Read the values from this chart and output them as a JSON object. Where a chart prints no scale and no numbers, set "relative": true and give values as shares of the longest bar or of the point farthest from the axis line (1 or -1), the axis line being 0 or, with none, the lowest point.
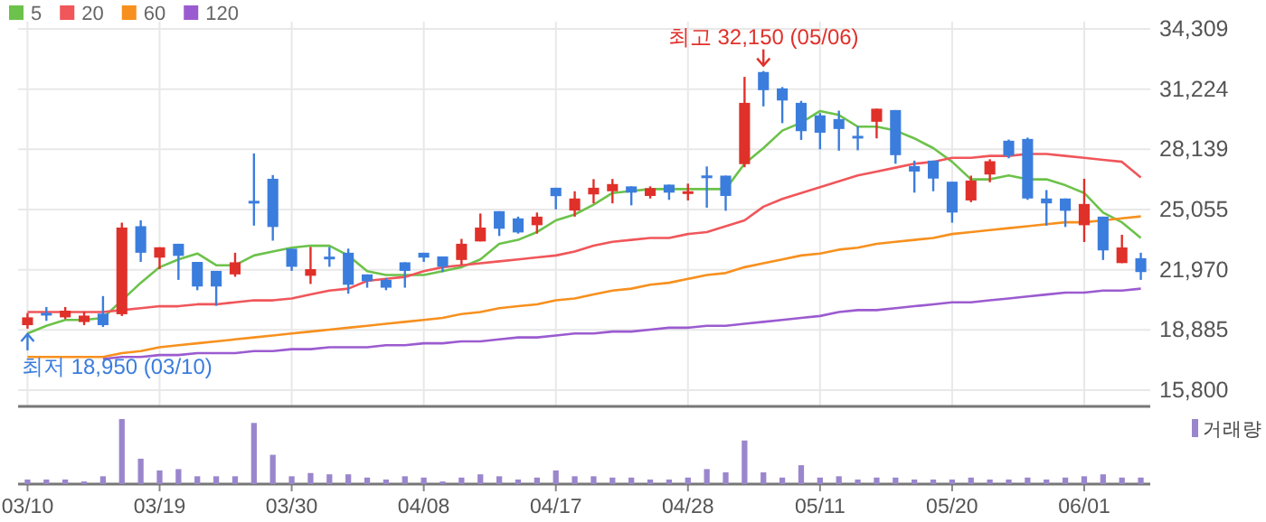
{
  "chart_data": [
    {
      "type": "candlestick",
      "categories": [
        "03/10",
        null,
        null,
        null,
        null,
        null,
        null,
        "03/19",
        null,
        null,
        null,
        null,
        null,
        null,
        "03/30",
        null,
        null,
        null,
        null,
        null,
        null,
        "04/08",
        null,
        null,
        null,
        null,
        null,
        null,
        "04/17",
        null,
        null,
        null,
        null,
        null,
        null,
        "04/28",
        null,
        null,
        null,
        null,
        null,
        null,
        "05/11",
        null,
        null,
        null,
        null,
        null,
        null,
        "05/20",
        null,
        null,
        null,
        null,
        null,
        null,
        "06/01",
        null,
        null,
        null
      ],
      "ohlc": [
        [
          19130,
          19750,
          18950,
          19530
        ],
        [
          19760,
          20060,
          19350,
          19720
        ],
        [
          19530,
          20060,
          19440,
          19870
        ],
        [
          19290,
          19810,
          19130,
          19620
        ],
        [
          19720,
          20620,
          19040,
          19130
        ],
        [
          19690,
          24380,
          19600,
          24130
        ],
        [
          24200,
          24500,
          22370,
          22840
        ],
        [
          22590,
          23120,
          22000,
          23120
        ],
        [
          23300,
          23300,
          21450,
          22680
        ],
        [
          22370,
          22370,
          20920,
          21110
        ],
        [
          21910,
          21910,
          20120,
          21110
        ],
        [
          21730,
          22840,
          21610,
          22350
        ],
        [
          25500,
          27930,
          24230,
          25400
        ],
        [
          26630,
          26820,
          23460,
          24160
        ],
        [
          23050,
          23050,
          21910,
          22120
        ],
        [
          21660,
          23140,
          21240,
          22000
        ],
        [
          22640,
          23140,
          22120,
          22590
        ],
        [
          22840,
          23050,
          20740,
          21200
        ],
        [
          21730,
          21730,
          21050,
          21380
        ],
        [
          21450,
          21540,
          20920,
          21050
        ],
        [
          22350,
          22350,
          21050,
          21910
        ],
        [
          22840,
          22840,
          22370,
          22590
        ],
        [
          22650,
          22650,
          21850,
          22120
        ],
        [
          22470,
          23550,
          22220,
          23300
        ],
        [
          23420,
          24850,
          23420,
          24130
        ],
        [
          24970,
          24970,
          23700,
          24070
        ],
        [
          24600,
          24690,
          23820,
          23880
        ],
        [
          24250,
          24900,
          23820,
          24690
        ],
        [
          26170,
          26170,
          25060,
          25740
        ],
        [
          25000,
          25990,
          24690,
          25620
        ],
        [
          25830,
          26610,
          25370,
          26170
        ],
        [
          25990,
          26620,
          25370,
          26360
        ],
        [
          26240,
          26240,
          25270,
          25920
        ],
        [
          25750,
          26240,
          25620,
          26150
        ],
        [
          26330,
          26330,
          25550,
          25920
        ],
        [
          25940,
          26380,
          25520,
          25990
        ],
        [
          26800,
          27260,
          25150,
          26750
        ],
        [
          26790,
          26790,
          24990,
          25750
        ],
        [
          27380,
          31850,
          27220,
          30520
        ],
        [
          32100,
          32150,
          30340,
          31170
        ],
        [
          31260,
          31330,
          29480,
          30640
        ],
        [
          30520,
          30620,
          28620,
          29070
        ],
        [
          29880,
          30000,
          28140,
          28990
        ],
        [
          29690,
          30120,
          28070,
          29180
        ],
        [
          28830,
          29320,
          28090,
          28780
        ],
        [
          29550,
          30220,
          28700,
          30220
        ],
        [
          30150,
          30150,
          27400,
          27840
        ],
        [
          27280,
          27560,
          25920,
          27000
        ],
        [
          27560,
          27560,
          25990,
          26640
        ],
        [
          26480,
          26480,
          24380,
          24900
        ],
        [
          25520,
          26790,
          25430,
          26540
        ],
        [
          26850,
          27630,
          26450,
          27530
        ],
        [
          28580,
          28640,
          27680,
          27810
        ],
        [
          28670,
          28740,
          25550,
          25620
        ],
        [
          25620,
          26050,
          24230,
          25370
        ],
        [
          25620,
          25620,
          24160,
          24990
        ],
        [
          24250,
          26630,
          23390,
          25340
        ],
        [
          24690,
          24690,
          22470,
          22960
        ],
        [
          22310,
          23760,
          22310,
          23110
        ],
        [
          22560,
          22840,
          21450,
          21850
        ]
      ],
      "colors": [
        "#e0302a",
        "#3b7ddd",
        "#e0302a",
        "#e0302a",
        "#3b7ddd",
        "#e0302a",
        "#3b7ddd",
        "#e0302a",
        "#3b7ddd",
        "#3b7ddd",
        "#3b7ddd",
        "#e0302a",
        "#3b7ddd",
        "#3b7ddd",
        "#3b7ddd",
        "#e0302a",
        "#3b7ddd",
        "#3b7ddd",
        "#3b7ddd",
        "#3b7ddd",
        "#3b7ddd",
        "#3b7ddd",
        "#3b7ddd",
        "#e0302a",
        "#e0302a",
        "#3b7ddd",
        "#3b7ddd",
        "#e0302a",
        "#3b7ddd",
        "#e0302a",
        "#e0302a",
        "#e0302a",
        "#3b7ddd",
        "#e0302a",
        "#3b7ddd",
        "#e0302a",
        "#3b7ddd",
        "#3b7ddd",
        "#e0302a",
        "#3b7ddd",
        "#3b7ddd",
        "#3b7ddd",
        "#3b7ddd",
        "#3b7ddd",
        "#3b7ddd",
        "#e0302a",
        "#3b7ddd",
        "#3b7ddd",
        "#3b7ddd",
        "#3b7ddd",
        "#e0302a",
        "#e0302a",
        "#3b7ddd",
        "#3b7ddd",
        "#3b7ddd",
        "#3b7ddd",
        "#e0302a",
        "#3b7ddd",
        "#e0302a",
        "#3b7ddd"
      ],
      "series": [
        {
          "name": "5",
          "type": "line",
          "color": "#6cc24a",
          "values": [
            18700,
            19100,
            19400,
            19400,
            19500,
            20400,
            21300,
            22100,
            22500,
            22800,
            22200,
            22200,
            22700,
            22900,
            23100,
            23200,
            23200,
            22700,
            21900,
            21700,
            21700,
            21700,
            21900,
            22100,
            22500,
            23300,
            23500,
            23900,
            24500,
            24800,
            25300,
            25900,
            26000,
            26100,
            26100,
            26100,
            26100,
            26100,
            27400,
            28200,
            29100,
            29500,
            30100,
            29900,
            29300,
            29300,
            29100,
            28700,
            28200,
            27500,
            26600,
            26600,
            26800,
            26600,
            26600,
            26300,
            25900,
            24900,
            24400,
            23600
          ]
        },
        {
          "name": "20",
          "type": "line",
          "color": "#f0565a",
          "values": [
            19800,
            19800,
            19800,
            19800,
            19800,
            19900,
            20000,
            20100,
            20100,
            20200,
            20200,
            20300,
            20400,
            20400,
            20500,
            20700,
            20900,
            21000,
            21400,
            21500,
            21600,
            21900,
            22100,
            22200,
            22300,
            22400,
            22500,
            22600,
            22700,
            22900,
            23200,
            23400,
            23500,
            23600,
            23600,
            23800,
            23900,
            24200,
            24500,
            25200,
            25600,
            25900,
            26200,
            26500,
            26800,
            27000,
            27200,
            27400,
            27500,
            27700,
            27700,
            27800,
            27800,
            27900,
            27900,
            27800,
            27700,
            27600,
            27500,
            26700
          ]
        },
        {
          "name": "60",
          "type": "line",
          "color": "#f7901e",
          "values": [
            17500,
            17500,
            17500,
            17500,
            17500,
            17700,
            17800,
            18000,
            18100,
            18200,
            18300,
            18400,
            18500,
            18600,
            18700,
            18800,
            18900,
            19000,
            19100,
            19200,
            19300,
            19400,
            19500,
            19700,
            19800,
            20000,
            20100,
            20200,
            20400,
            20500,
            20700,
            20900,
            21000,
            21200,
            21300,
            21500,
            21700,
            21800,
            22100,
            22300,
            22500,
            22700,
            22800,
            23000,
            23100,
            23300,
            23400,
            23500,
            23600,
            23800,
            23900,
            24000,
            24100,
            24200,
            24300,
            24400,
            24400,
            24500,
            24600,
            24700
          ]
        },
        {
          "name": "120",
          "type": "line",
          "color": "#9b5bd0",
          "values": [
            null,
            null,
            null,
            null,
            17400,
            17500,
            17500,
            17600,
            17600,
            17700,
            17700,
            17700,
            17800,
            17800,
            17900,
            17900,
            18000,
            18000,
            18000,
            18100,
            18100,
            18200,
            18200,
            18300,
            18300,
            18400,
            18500,
            18500,
            18600,
            18700,
            18700,
            18800,
            18800,
            18900,
            19000,
            19000,
            19100,
            19100,
            19200,
            19300,
            19400,
            19500,
            19600,
            19800,
            19900,
            19900,
            20000,
            20100,
            20200,
            20300,
            20300,
            20400,
            20500,
            20600,
            20700,
            20800,
            20800,
            20900,
            20900,
            21000
          ]
        }
      ],
      "ylim": [
        15800,
        34309
      ],
      "yticks": [
        {
          "value": 15800,
          "label": "15,800"
        },
        {
          "value": 18885,
          "label": "18,885"
        },
        {
          "value": 21970,
          "label": "21,970"
        },
        {
          "value": 25055,
          "label": "25,055"
        },
        {
          "value": 28139,
          "label": "28,139"
        },
        {
          "value": 31224,
          "label": "31,224"
        },
        {
          "value": 34309,
          "label": "34,309"
        }
      ],
      "grid": true,
      "legend": "top left",
      "tick_labels": "y",
      "annotations": [
        {
          "text": "최고 32,150 (05/06)",
          "y": 32150
        },
        {
          "text": "최저 18,950 (03/10)",
          "x": "03/10",
          "y": 18950
        }
      ]
    },
    {
      "type": "bar",
      "relative": true,
      "tick_labels": "x",
      "legend": "top right",
      "categories": [
        "03/10",
        null,
        null,
        null,
        null,
        null,
        null,
        "03/19",
        null,
        null,
        null,
        null,
        null,
        null,
        "03/30",
        null,
        null,
        null,
        null,
        null,
        null,
        "04/08",
        null,
        null,
        null,
        null,
        null,
        null,
        "04/17",
        null,
        null,
        null,
        null,
        null,
        null,
        "04/28",
        null,
        null,
        null,
        null,
        null,
        null,
        "05/11",
        null,
        null,
        null,
        null,
        null,
        null,
        "05/20",
        null,
        null,
        null,
        null,
        null,
        null,
        "06/01",
        null,
        null,
        null
      ],
      "series": [
        {
          "name": "거래량",
          "color": "#9a86cc",
          "values": [
            0.07,
            0.07,
            0.07,
            0.04,
            0.12,
            1,
            0.39,
            0.21,
            0.23,
            0.12,
            0.12,
            0.12,
            0.94,
            0.45,
            0.12,
            0.17,
            0.15,
            0.15,
            0.1,
            0.07,
            0.12,
            0.1,
            0.04,
            0.1,
            0.15,
            0.12,
            0.07,
            0.1,
            0.21,
            0.12,
            0.12,
            0.1,
            0.1,
            0.07,
            0.07,
            0.1,
            0.23,
            0.18,
            0.67,
            0.18,
            0.1,
            0.29,
            0.1,
            0.12,
            0.07,
            0.1,
            0.1,
            0.07,
            0.07,
            0.07,
            0.1,
            0.07,
            0.07,
            0.1,
            0.07,
            0.1,
            0.12,
            0.15,
            0.1,
            0.1
          ]
        }
      ]
    }
  ]
}
